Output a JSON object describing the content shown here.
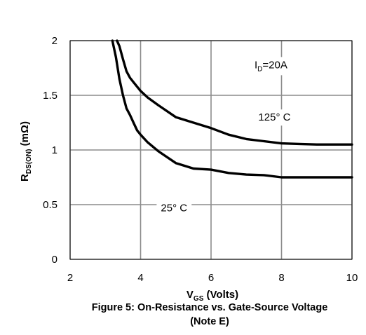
{
  "caption": {
    "line1": "Figure 5: On-Resistance vs. Gate-Source Voltage",
    "line2": "(Note E)"
  },
  "chart_data": {
    "type": "line",
    "title": "Figure 5: On-Resistance vs. Gate-Source Voltage (Note E)",
    "xlabel": {
      "main": "V",
      "sub": "GS",
      "rest": " (Volts)"
    },
    "ylabel": {
      "main": "R",
      "sub": "DS(ON)",
      "rest": " (mΩ)"
    },
    "xlim": [
      2,
      10
    ],
    "ylim": [
      0,
      2
    ],
    "xticks": [
      2,
      4,
      6,
      8,
      10
    ],
    "yticks": [
      0,
      0.5,
      1,
      1.5,
      2
    ],
    "xtick_labels": [
      "2",
      "4",
      "6",
      "8",
      "10"
    ],
    "ytick_labels": [
      "0",
      "0.5",
      "1",
      "1.5",
      "2"
    ],
    "grid": true,
    "annotations": [
      {
        "id": "id-note",
        "main": "I",
        "sub": "D",
        "rest": "=20A",
        "x": 7.7,
        "y": 1.78
      },
      {
        "id": "label-125c",
        "text": "125° C",
        "x": 7.8,
        "y": 1.3
      },
      {
        "id": "label-25c",
        "text": "25° C",
        "x": 4.95,
        "y": 0.47
      }
    ],
    "series": [
      {
        "name": "125° C",
        "x": [
          3.33,
          3.4,
          3.5,
          3.6,
          3.7,
          3.8,
          4.0,
          4.2,
          4.5,
          5.0,
          5.5,
          6.0,
          6.5,
          7.0,
          7.5,
          8.0,
          8.5,
          9.0,
          9.5,
          10.0
        ],
        "y": [
          2.0,
          1.95,
          1.83,
          1.72,
          1.66,
          1.62,
          1.54,
          1.48,
          1.41,
          1.3,
          1.25,
          1.2,
          1.14,
          1.1,
          1.08,
          1.06,
          1.055,
          1.05,
          1.05,
          1.05
        ]
      },
      {
        "name": "25° C",
        "x": [
          3.2,
          3.3,
          3.4,
          3.5,
          3.6,
          3.7,
          3.8,
          3.9,
          4.0,
          4.2,
          4.5,
          5.0,
          5.5,
          6.0,
          6.5,
          7.0,
          7.5,
          8.0,
          8.5,
          9.0,
          9.5,
          10.0
        ],
        "y": [
          2.0,
          1.85,
          1.65,
          1.5,
          1.38,
          1.32,
          1.25,
          1.18,
          1.14,
          1.07,
          0.99,
          0.88,
          0.83,
          0.82,
          0.79,
          0.775,
          0.77,
          0.75,
          0.75,
          0.75,
          0.75,
          0.75
        ]
      }
    ]
  }
}
